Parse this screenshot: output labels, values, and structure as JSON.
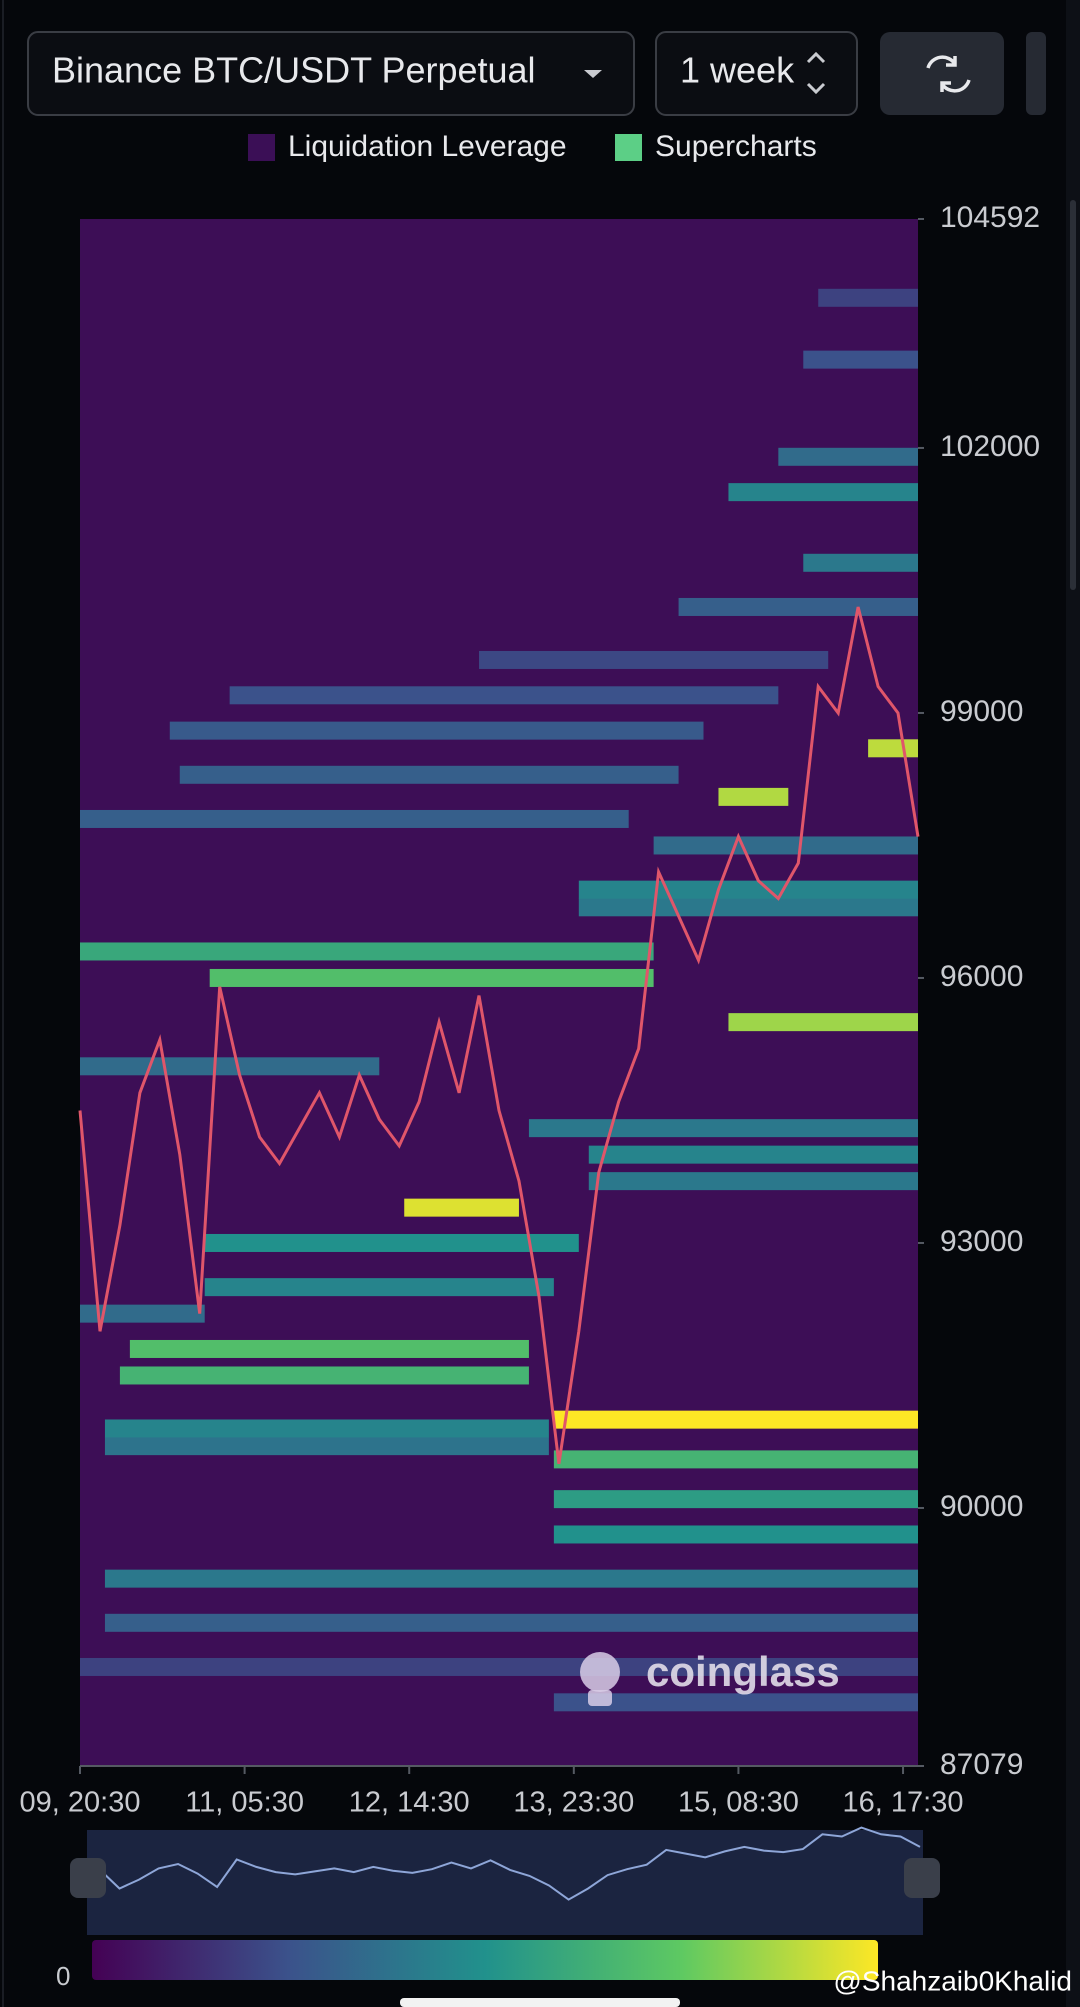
{
  "header": {
    "exchange": "Binance BTC/USDT Perpetual",
    "range": "1 week"
  },
  "chart_data": {
    "type": "heatmap",
    "series": [
      {
        "name": "Liquidation Leverage",
        "color": "#3b0f56"
      },
      {
        "name": "Supercharts",
        "color": "#5ccf86"
      }
    ],
    "price": {
      "color": "#e0566a",
      "x": [
        0,
        4,
        8,
        12,
        16,
        20,
        24,
        28,
        32,
        36,
        40,
        44,
        48,
        52,
        56,
        60,
        64,
        68,
        72,
        76,
        80,
        84,
        88,
        92,
        96,
        100,
        104,
        108,
        112,
        116,
        120,
        124,
        128,
        132,
        136,
        140,
        144,
        148,
        152,
        156,
        160,
        164,
        168
      ],
      "values": [
        94500,
        92000,
        93200,
        94700,
        95300,
        94000,
        92200,
        95900,
        94900,
        94200,
        93900,
        94300,
        94700,
        94200,
        94900,
        94400,
        94100,
        94600,
        95500,
        94700,
        95800,
        94500,
        93700,
        92400,
        90500,
        92000,
        93800,
        94600,
        95200,
        97200,
        96700,
        96200,
        97000,
        97600,
        97100,
        96900,
        97300,
        99300,
        99000,
        100200,
        99300,
        99000,
        97600
      ]
    },
    "bands": [
      {
        "price": 91000,
        "start": 95,
        "end": 168,
        "value": 100
      },
      {
        "price": 93400,
        "start": 65,
        "end": 88,
        "value": 95
      },
      {
        "price": 98600,
        "start": 158,
        "end": 168,
        "value": 90
      },
      {
        "price": 98050,
        "start": 128,
        "end": 142,
        "value": 88
      },
      {
        "price": 95500,
        "start": 130,
        "end": 168,
        "value": 85
      },
      {
        "price": 96300,
        "start": 0,
        "end": 115,
        "value": 60
      },
      {
        "price": 96000,
        "start": 26,
        "end": 115,
        "value": 70
      },
      {
        "price": 90550,
        "start": 95,
        "end": 168,
        "value": 65
      },
      {
        "price": 90100,
        "start": 95,
        "end": 168,
        "value": 55
      },
      {
        "price": 89700,
        "start": 95,
        "end": 168,
        "value": 50
      },
      {
        "price": 89200,
        "start": 5,
        "end": 168,
        "value": 40
      },
      {
        "price": 91800,
        "start": 10,
        "end": 90,
        "value": 70
      },
      {
        "price": 91500,
        "start": 8,
        "end": 90,
        "value": 65
      },
      {
        "price": 92500,
        "start": 25,
        "end": 95,
        "value": 45
      },
      {
        "price": 93000,
        "start": 25,
        "end": 100,
        "value": 50
      },
      {
        "price": 94300,
        "start": 90,
        "end": 168,
        "value": 40
      },
      {
        "price": 94000,
        "start": 102,
        "end": 168,
        "value": 45
      },
      {
        "price": 93700,
        "start": 102,
        "end": 168,
        "value": 40
      },
      {
        "price": 97500,
        "start": 115,
        "end": 168,
        "value": 35
      },
      {
        "price": 97000,
        "start": 100,
        "end": 168,
        "value": 45
      },
      {
        "price": 96800,
        "start": 100,
        "end": 168,
        "value": 40
      },
      {
        "price": 98300,
        "start": 20,
        "end": 120,
        "value": 30
      },
      {
        "price": 98800,
        "start": 18,
        "end": 125,
        "value": 28
      },
      {
        "price": 99200,
        "start": 30,
        "end": 140,
        "value": 25
      },
      {
        "price": 99600,
        "start": 80,
        "end": 150,
        "value": 22
      },
      {
        "price": 100200,
        "start": 120,
        "end": 168,
        "value": 30
      },
      {
        "price": 101500,
        "start": 130,
        "end": 168,
        "value": 45
      },
      {
        "price": 101900,
        "start": 140,
        "end": 168,
        "value": 35
      },
      {
        "price": 100700,
        "start": 145,
        "end": 168,
        "value": 40
      },
      {
        "price": 103000,
        "start": 145,
        "end": 168,
        "value": 25
      },
      {
        "price": 103700,
        "start": 148,
        "end": 168,
        "value": 20
      },
      {
        "price": 88700,
        "start": 5,
        "end": 168,
        "value": 30
      },
      {
        "price": 88200,
        "start": 0,
        "end": 168,
        "value": 20
      },
      {
        "price": 87800,
        "start": 95,
        "end": 168,
        "value": 25
      },
      {
        "price": 95000,
        "start": 0,
        "end": 60,
        "value": 35
      },
      {
        "price": 97800,
        "start": 0,
        "end": 110,
        "value": 30
      },
      {
        "price": 90900,
        "start": 5,
        "end": 94,
        "value": 45
      },
      {
        "price": 90700,
        "start": 5,
        "end": 94,
        "value": 38
      },
      {
        "price": 92200,
        "start": 0,
        "end": 25,
        "value": 35
      }
    ],
    "xlim": [
      0,
      168
    ],
    "xticks": [
      {
        "value": 0,
        "label": "09, 20:30"
      },
      {
        "value": 33,
        "label": "11, 05:30"
      },
      {
        "value": 66,
        "label": "12, 14:30"
      },
      {
        "value": 99,
        "label": "13, 23:30"
      },
      {
        "value": 132,
        "label": "15, 08:30"
      },
      {
        "value": 165,
        "label": "16, 17:30"
      }
    ],
    "ylim": [
      87079,
      104592
    ],
    "yticks": [
      87079,
      90000,
      93000,
      96000,
      99000,
      102000,
      104592
    ],
    "zlim": [
      0,
      100
    ],
    "zticks": [
      0
    ],
    "colorscale": "viridis"
  },
  "watermark": "coinglass",
  "credit": "@Shahzaib0Khalid"
}
